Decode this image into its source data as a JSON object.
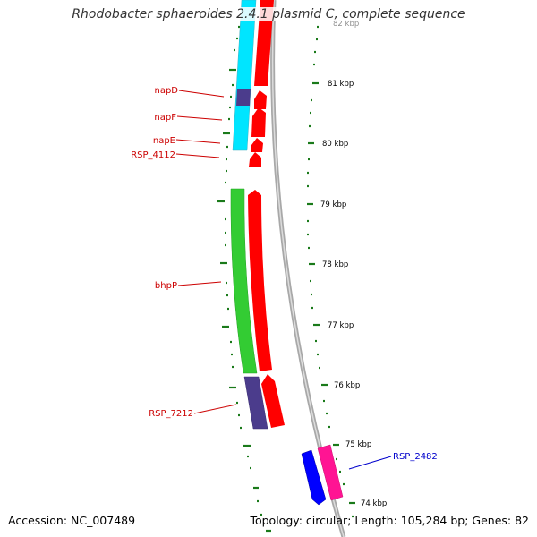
{
  "title": "Rhodobacter sphaeroides 2.4.1 plasmid C, complete sequence",
  "accession": "Accession: NC_007489",
  "summary": "Topology: circular; Length: 105,284 bp; Genes: 82",
  "colors": {
    "backbone": "#8c8c8c",
    "forward_cds": "#ff0000",
    "reverse_cds": "#0000ff",
    "forward_label": "#cc0000",
    "reverse_label": "#0000cc",
    "tick": "#1a7a1a",
    "cyan_track": "#00e5ff",
    "green_track": "#33cc33",
    "purple_track": "#4b3c8c",
    "magenta_track": "#ff1493",
    "blue_track": "#0000ff"
  },
  "kbp_labels": [
    "82 kbp",
    "81 kbp",
    "80 kbp",
    "79 kbp",
    "78 kbp",
    "77 kbp",
    "76 kbp",
    "75 kbp",
    "74 kbp"
  ],
  "gene_labels": [
    {
      "text": "napD",
      "strand": "forward"
    },
    {
      "text": "napF",
      "strand": "forward"
    },
    {
      "text": "napE",
      "strand": "forward"
    },
    {
      "text": "RSP_4112",
      "strand": "forward"
    },
    {
      "text": "bhpP",
      "strand": "forward"
    },
    {
      "text": "RSP_7212",
      "strand": "forward"
    },
    {
      "text": "RSP_2482",
      "strand": "reverse"
    }
  ]
}
